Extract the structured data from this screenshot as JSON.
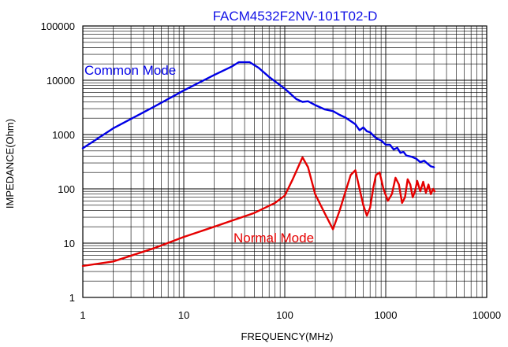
{
  "chart_data": {
    "type": "line",
    "title": "FACM4532F2NV-101T02-D",
    "xlabel": "FREQUENCY(MHz)",
    "ylabel": "IMPEDANCE(Ohm)",
    "x_scale": "log",
    "y_scale": "log",
    "xlim": [
      1,
      10000
    ],
    "ylim": [
      1,
      100000
    ],
    "x_ticks": [
      1,
      10,
      100,
      1000,
      10000
    ],
    "x_tick_labels": [
      "1",
      "10",
      "100",
      "1000",
      "10000"
    ],
    "y_ticks": [
      1,
      10,
      100,
      1000,
      10000,
      100000
    ],
    "y_tick_labels": [
      "1",
      "10",
      "100",
      "1000",
      "10000",
      "100000"
    ],
    "grid": true,
    "colors": {
      "title": "#1414e6",
      "grid": "#000000",
      "common": "#0000e6",
      "normal": "#e60000"
    },
    "series": [
      {
        "name": "Common Mode",
        "color": "#0000e6",
        "points": [
          [
            1,
            560
          ],
          [
            2,
            1300
          ],
          [
            5,
            3200
          ],
          [
            10,
            6500
          ],
          [
            20,
            12500
          ],
          [
            30,
            18000
          ],
          [
            35,
            21500
          ],
          [
            45,
            21500
          ],
          [
            55,
            17000
          ],
          [
            70,
            11500
          ],
          [
            100,
            7000
          ],
          [
            130,
            4500
          ],
          [
            150,
            4000
          ],
          [
            170,
            4100
          ],
          [
            200,
            3500
          ],
          [
            250,
            2900
          ],
          [
            300,
            2700
          ],
          [
            350,
            2300
          ],
          [
            400,
            2050
          ],
          [
            500,
            1550
          ],
          [
            550,
            1200
          ],
          [
            600,
            1350
          ],
          [
            650,
            1150
          ],
          [
            700,
            1100
          ],
          [
            800,
            860
          ],
          [
            900,
            780
          ],
          [
            1000,
            650
          ],
          [
            1100,
            650
          ],
          [
            1200,
            530
          ],
          [
            1300,
            570
          ],
          [
            1400,
            460
          ],
          [
            1500,
            480
          ],
          [
            1600,
            410
          ],
          [
            1800,
            390
          ],
          [
            2000,
            360
          ],
          [
            2200,
            310
          ],
          [
            2400,
            330
          ],
          [
            2600,
            290
          ],
          [
            2800,
            260
          ],
          [
            3000,
            250
          ]
        ]
      },
      {
        "name": "Normal Mode",
        "color": "#e60000",
        "points": [
          [
            1,
            3.8
          ],
          [
            2,
            4.6
          ],
          [
            5,
            8
          ],
          [
            10,
            13
          ],
          [
            20,
            20
          ],
          [
            30,
            26
          ],
          [
            50,
            36
          ],
          [
            80,
            55
          ],
          [
            100,
            75
          ],
          [
            120,
            150
          ],
          [
            150,
            380
          ],
          [
            170,
            250
          ],
          [
            200,
            80
          ],
          [
            250,
            35
          ],
          [
            300,
            18
          ],
          [
            350,
            40
          ],
          [
            400,
            90
          ],
          [
            450,
            180
          ],
          [
            500,
            220
          ],
          [
            550,
            100
          ],
          [
            600,
            50
          ],
          [
            650,
            32
          ],
          [
            700,
            45
          ],
          [
            750,
            100
          ],
          [
            800,
            180
          ],
          [
            870,
            200
          ],
          [
            950,
            100
          ],
          [
            1050,
            60
          ],
          [
            1150,
            80
          ],
          [
            1250,
            160
          ],
          [
            1350,
            120
          ],
          [
            1450,
            55
          ],
          [
            1550,
            70
          ],
          [
            1650,
            150
          ],
          [
            1750,
            120
          ],
          [
            1850,
            70
          ],
          [
            1950,
            90
          ],
          [
            2050,
            140
          ],
          [
            2200,
            90
          ],
          [
            2350,
            135
          ],
          [
            2500,
            85
          ],
          [
            2650,
            120
          ],
          [
            2800,
            80
          ],
          [
            2950,
            100
          ],
          [
            3050,
            90
          ]
        ]
      }
    ]
  }
}
